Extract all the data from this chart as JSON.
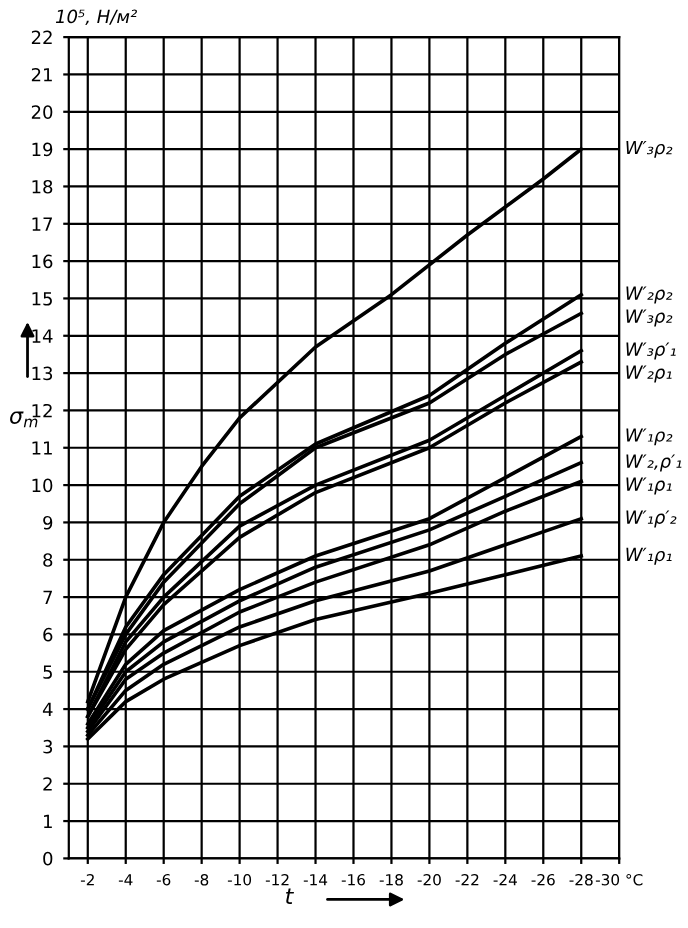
{
  "chart_data": {
    "type": "line",
    "xlabel": "t",
    "ylabel": "σ$_{m}$",
    "annotations": [
      "10⁵, Н/м²"
    ],
    "xlim": [
      -1,
      -30
    ],
    "xticks": [
      -2,
      -4,
      -6,
      -8,
      -10,
      -12,
      -14,
      -16,
      -18,
      -20,
      -22,
      -24,
      -26,
      -28,
      {
        "value": -30,
        "label": "-30 °C"
      }
    ],
    "ylim": [
      0,
      22
    ],
    "yticks": [
      0,
      1,
      2,
      3,
      4,
      5,
      6,
      7,
      8,
      9,
      10,
      11,
      12,
      13,
      14,
      15,
      16,
      17,
      18,
      19,
      20,
      21,
      22
    ],
    "grid": true,
    "marker": "none",
    "line_style": "solid",
    "x": [
      -2,
      -4,
      -6,
      -10,
      -14,
      -20,
      -24,
      -28
    ],
    "series": [
      {
        "name": "W′₃ρ₂",
        "color": "#000000",
        "x": [
          -2,
          -4,
          -6,
          -8,
          -10,
          -14,
          -18,
          -22,
          -26,
          -28
        ],
        "values": [
          4.2,
          7.0,
          9.0,
          10.5,
          11.8,
          13.7,
          15.1,
          16.7,
          18.2,
          19.0
        ]
      },
      {
        "name": "W′₂ρ₂",
        "color": "#000000",
        "values": [
          4.0,
          6.2,
          7.6,
          9.7,
          11.1,
          12.4,
          13.8,
          15.1
        ]
      },
      {
        "name": "W′₃ρ₂",
        "color": "#000000",
        "values": [
          4.0,
          6.0,
          7.4,
          9.5,
          11.0,
          12.2,
          13.5,
          14.6
        ]
      },
      {
        "name": "W′₃ρ′₁",
        "color": "#000000",
        "values": [
          3.8,
          5.8,
          7.0,
          8.9,
          10.0,
          11.2,
          12.4,
          13.6
        ]
      },
      {
        "name": "W′₂ρ₁",
        "color": "#000000",
        "values": [
          3.8,
          5.6,
          6.8,
          8.6,
          9.8,
          11.0,
          12.2,
          13.3
        ]
      },
      {
        "name": "W′₁ρ₂",
        "color": "#000000",
        "values": [
          3.6,
          5.2,
          6.1,
          7.2,
          8.1,
          9.1,
          10.2,
          11.3
        ]
      },
      {
        "name": "W′₂,ρ′₁",
        "color": "#000000",
        "values": [
          3.5,
          5.0,
          5.8,
          6.9,
          7.8,
          8.8,
          9.7,
          10.6
        ]
      },
      {
        "name": "W′₁ρ₁",
        "color": "#000000",
        "values": [
          3.4,
          4.8,
          5.5,
          6.6,
          7.4,
          8.4,
          9.3,
          10.1
        ]
      },
      {
        "name": "W′₁ρ′₂",
        "color": "#000000",
        "values": [
          3.3,
          4.5,
          5.2,
          6.2,
          6.9,
          7.7,
          8.4,
          9.1
        ]
      },
      {
        "name": "W′₁ρ₁",
        "color": "#000000",
        "values": [
          3.2,
          4.2,
          4.8,
          5.7,
          6.4,
          7.1,
          7.6,
          8.1
        ]
      }
    ]
  }
}
